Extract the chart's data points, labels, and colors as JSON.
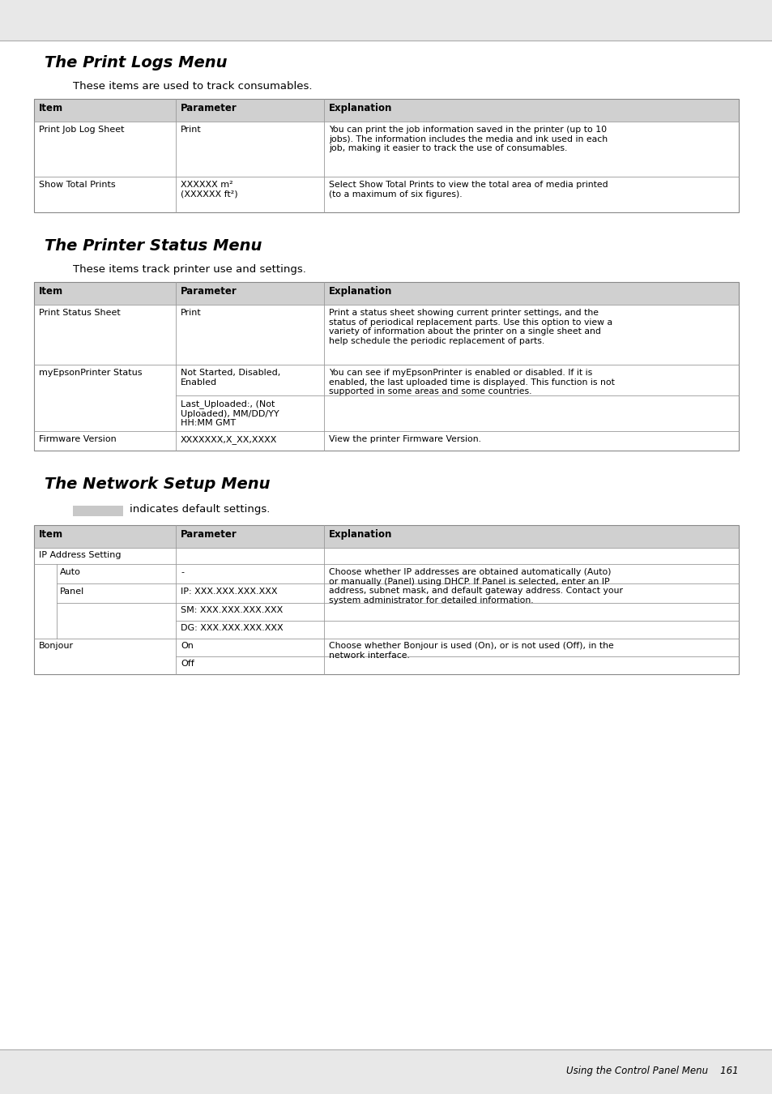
{
  "page_bg": "#e8e8e8",
  "content_bg": "#ffffff",
  "header_bg": "#d0d0d0",
  "default_swatch_color": "#c8c8c8",
  "border_color": "#888888",
  "line_color": "#999999",
  "section1_title": "The Print Logs Menu",
  "section1_subtitle": "These items are used to track consumables.",
  "section2_title": "The Printer Status Menu",
  "section2_subtitle": "These items track printer use and settings.",
  "section3_title": "The Network Setup Menu",
  "section3_swatch_text": "indicates default settings.",
  "col_headers": [
    "Item",
    "Parameter",
    "Explanation"
  ],
  "footer_text": "Using the Control Panel Menu",
  "footer_page": "161"
}
